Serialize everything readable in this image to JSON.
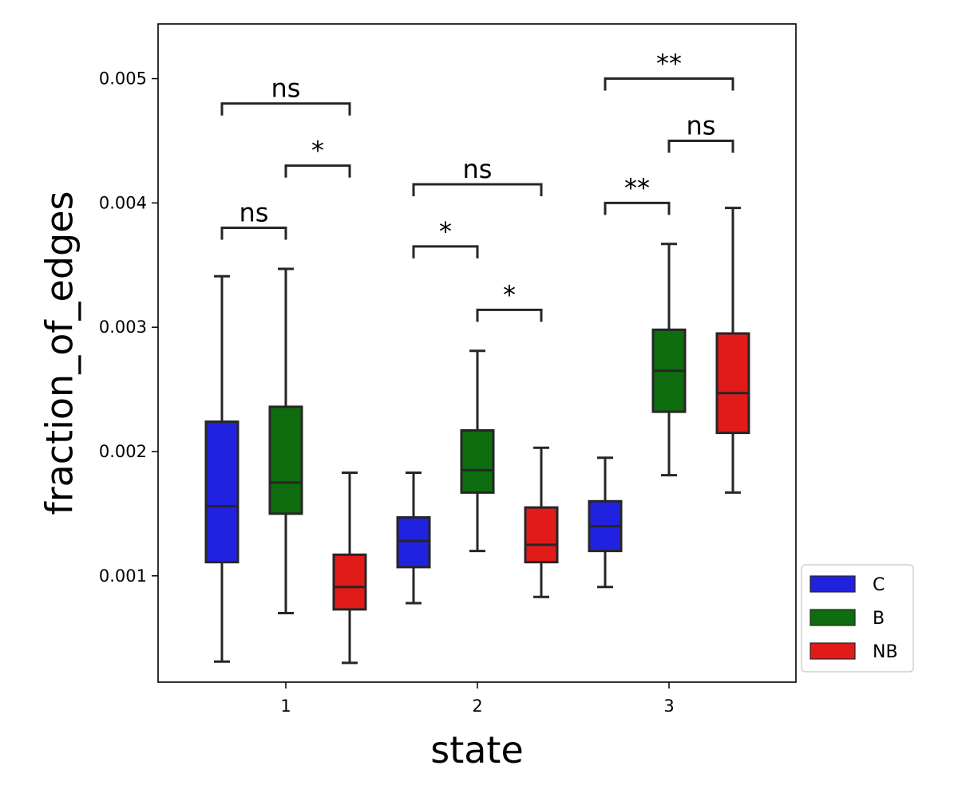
{
  "chart_data": {
    "type": "box",
    "xlabel": "state",
    "ylabel": "fraction_of_edges",
    "categories": [
      "1",
      "2",
      "3"
    ],
    "ylim": [
      0.000145,
      0.00544
    ],
    "y_ticks": [
      {
        "value": 0.001,
        "label": "0.001"
      },
      {
        "value": 0.002,
        "label": "0.002"
      },
      {
        "value": 0.003,
        "label": "0.003"
      },
      {
        "value": 0.004,
        "label": "0.004"
      },
      {
        "value": 0.005,
        "label": "0.005"
      }
    ],
    "grid": false,
    "legend_position": "outside-right-bottom",
    "series": [
      {
        "name": "C",
        "color": "#2121e0",
        "boxes": [
          {
            "whisker_low": 0.00031,
            "q1": 0.00111,
            "median": 0.00156,
            "q3": 0.00224,
            "whisker_high": 0.00341
          },
          {
            "whisker_low": 0.00078,
            "q1": 0.00107,
            "median": 0.00128,
            "q3": 0.00147,
            "whisker_high": 0.00183
          },
          {
            "whisker_low": 0.00091,
            "q1": 0.0012,
            "median": 0.0014,
            "q3": 0.0016,
            "whisker_high": 0.00195
          }
        ]
      },
      {
        "name": "B",
        "color": "#0e6d0e",
        "boxes": [
          {
            "whisker_low": 0.0007,
            "q1": 0.0015,
            "median": 0.00175,
            "q3": 0.00236,
            "whisker_high": 0.00347
          },
          {
            "whisker_low": 0.0012,
            "q1": 0.00167,
            "median": 0.00185,
            "q3": 0.00217,
            "whisker_high": 0.00281
          },
          {
            "whisker_low": 0.00181,
            "q1": 0.00232,
            "median": 0.00265,
            "q3": 0.00298,
            "whisker_high": 0.00367
          }
        ]
      },
      {
        "name": "NB",
        "color": "#e11a1a",
        "boxes": [
          {
            "whisker_low": 0.0003,
            "q1": 0.00073,
            "median": 0.00091,
            "q3": 0.00117,
            "whisker_high": 0.00183
          },
          {
            "whisker_low": 0.00083,
            "q1": 0.00111,
            "median": 0.00125,
            "q3": 0.00155,
            "whisker_high": 0.00203
          },
          {
            "whisker_low": 0.00167,
            "q1": 0.00215,
            "median": 0.00247,
            "q3": 0.00295,
            "whisker_high": 0.00396
          }
        ]
      }
    ],
    "annotations": [
      {
        "category": 0,
        "from_series": 0,
        "to_series": 1,
        "y": 0.0038,
        "text": "ns"
      },
      {
        "category": 0,
        "from_series": 1,
        "to_series": 2,
        "y": 0.0043,
        "text": "*"
      },
      {
        "category": 0,
        "from_series": 0,
        "to_series": 2,
        "y": 0.0048,
        "text": "ns"
      },
      {
        "category": 1,
        "from_series": 0,
        "to_series": 1,
        "y": 0.00365,
        "text": "*"
      },
      {
        "category": 1,
        "from_series": 1,
        "to_series": 2,
        "y": 0.00314,
        "text": "*"
      },
      {
        "category": 1,
        "from_series": 0,
        "to_series": 2,
        "y": 0.00415,
        "text": "ns"
      },
      {
        "category": 2,
        "from_series": 0,
        "to_series": 1,
        "y": 0.004,
        "text": "**"
      },
      {
        "category": 2,
        "from_series": 1,
        "to_series": 2,
        "y": 0.0045,
        "text": "ns"
      },
      {
        "category": 2,
        "from_series": 0,
        "to_series": 2,
        "y": 0.005,
        "text": "**"
      }
    ]
  }
}
